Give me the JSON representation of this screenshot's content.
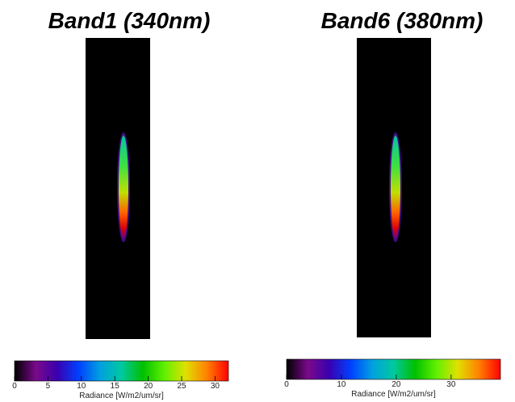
{
  "chart_data": [
    {
      "type": "image",
      "title": "Band1 (340nm)",
      "colorbar": {
        "label": "Radiance [W/m2/um/sr]",
        "lim": [
          0,
          32
        ],
        "ticks": [
          0,
          5,
          10,
          15,
          20,
          25,
          30
        ]
      }
    },
    {
      "type": "image",
      "title": "Band6 (380nm)",
      "colorbar": {
        "label": "Radiance [W/m2/um/sr]",
        "lim": [
          0,
          39
        ],
        "ticks": [
          0,
          10,
          20,
          30
        ]
      }
    }
  ]
}
